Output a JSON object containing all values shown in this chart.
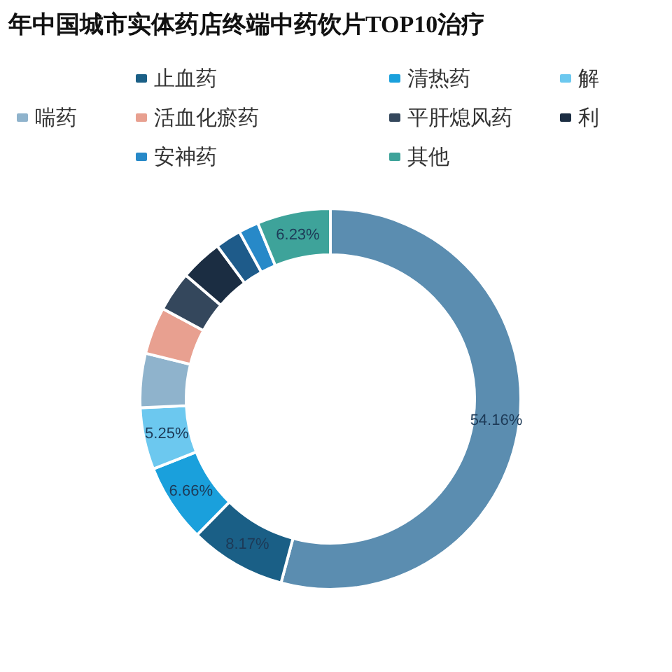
{
  "chart_data": {
    "type": "donut",
    "title": "年中国城市实体药店终端中药饮片TOP10治疗",
    "categories": [
      null,
      "止血药",
      "清热药",
      "解",
      "喘药",
      "活血化瘀药",
      "平肝熄风药",
      "利",
      null,
      "安神药",
      "其他"
    ],
    "values": [
      54.16,
      8.17,
      6.66,
      5.25,
      4.6,
      4.0,
      3.4,
      3.6,
      2.2,
      1.7,
      6.23
    ],
    "colors": [
      "#5b8db0",
      "#1a5f86",
      "#1aa0dc",
      "#6cc8ef",
      "#8fb3cc",
      "#e8a090",
      "#34475c",
      "#1b2d42",
      "#1e5b8a",
      "#2789c8",
      "#3ea39a"
    ],
    "value_labels": [
      "54.16%",
      "8.17%",
      "6.66%",
      "5.25%",
      null,
      null,
      null,
      null,
      null,
      null,
      "6.23%"
    ],
    "legend": "top"
  }
}
